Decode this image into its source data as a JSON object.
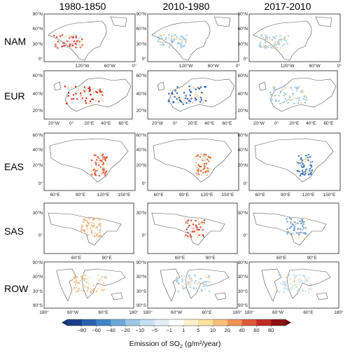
{
  "column_headers": [
    "1980-1850",
    "2010-1980",
    "2017-2010"
  ],
  "rows": [
    {
      "label": "NAM",
      "ylabels": [
        "90°N",
        "60°N",
        "30°N",
        "0°"
      ],
      "xlabels": [
        "120°W",
        "60°W",
        "0°"
      ]
    },
    {
      "label": "EUR",
      "ylabels": [
        "60°N",
        "40°N",
        "20°N"
      ],
      "xlabels": [
        "20°W",
        "0°",
        "20°E",
        "40°E",
        "60°E"
      ]
    },
    {
      "label": "EAS",
      "ylabels": [
        "60°N",
        "40°N",
        "20°N",
        "0°"
      ],
      "xlabels": [
        "60°E",
        "90°E",
        "120°E",
        "150°E"
      ]
    },
    {
      "label": "SAS",
      "ylabels": [
        "30°N",
        "0°"
      ],
      "xlabels": [
        "60°E",
        "90°E"
      ]
    },
    {
      "label": "ROW",
      "ylabels": [
        "90°N",
        "30°N",
        "30°S",
        "90°S"
      ],
      "xlabels": [
        "180°",
        "60°W",
        "60°E",
        "180°"
      ]
    }
  ],
  "colorbar": {
    "ticks": [
      "−80",
      "−60",
      "−40",
      "−20",
      "−10",
      "−5",
      "−1",
      "1",
      "5",
      "10",
      "20",
      "40",
      "60",
      "80"
    ],
    "colors": [
      "#1a3f8a",
      "#2b62b0",
      "#3f86c8",
      "#6aa8d8",
      "#9cc8e6",
      "#c5e0f0",
      "#e3eef6",
      "#ffffff",
      "#fdf2cc",
      "#fde2a0",
      "#f9c07a",
      "#f09253",
      "#dc5a37",
      "#c22a22",
      "#8e0f14"
    ],
    "title_prefix": "Emission of  SO",
    "title_sub": "2",
    "title_suffix": " (g/m²/year)"
  },
  "colors": {
    "positive": "#d73027",
    "negative": "#2c6fb7",
    "coast": "#555555"
  }
}
